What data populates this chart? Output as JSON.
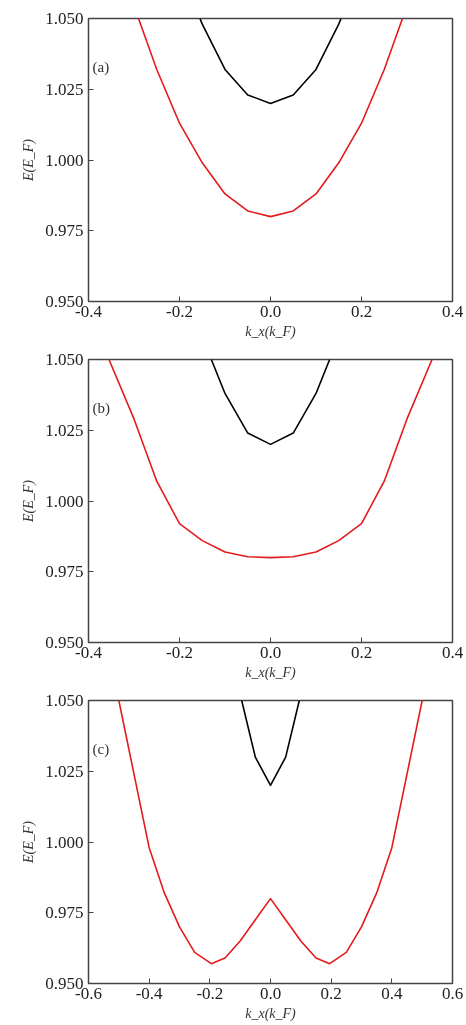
{
  "chart_data": [
    {
      "type": "line",
      "xlabel": "k_x(k_F)",
      "ylabel": "E(E_F)",
      "annotations": [
        "(a)"
      ],
      "grid": false,
      "marker": "none",
      "line_style": "solid",
      "xlim": [
        -0.4,
        0.4
      ],
      "ylim": [
        0.95,
        1.05
      ],
      "xticks": [
        {
          "value": -0.4,
          "label": "-0.4"
        },
        {
          "value": -0.2,
          "label": "-0.2"
        },
        {
          "value": 0,
          "label": "0.0"
        },
        {
          "value": 0.2,
          "label": "0.2"
        },
        {
          "value": 0.4,
          "label": "0.4"
        }
      ],
      "yticks": [
        {
          "value": 0.95,
          "label": "0.950"
        },
        {
          "value": 0.975,
          "label": "0.975"
        },
        {
          "value": 1.0,
          "label": "1.000"
        },
        {
          "value": 1.025,
          "label": "1.025"
        },
        {
          "value": 1.05,
          "label": "1.050"
        }
      ],
      "series": [
        {
          "color": "#000000",
          "x": [
            -0.155,
            -0.15,
            -0.1,
            -0.05,
            0,
            0.05,
            0.1,
            0.15,
            0.155
          ],
          "values": [
            1.05,
            1.048,
            1.032,
            1.023,
            1.02,
            1.023,
            1.032,
            1.048,
            1.05
          ]
        },
        {
          "color": "#e41a1c",
          "x": [
            -0.29,
            -0.25,
            -0.2,
            -0.15,
            -0.1,
            -0.05,
            0,
            0.05,
            0.1,
            0.15,
            0.2,
            0.25,
            0.29
          ],
          "values": [
            1.05,
            1.032,
            1.013,
            0.999,
            0.988,
            0.982,
            0.98,
            0.982,
            0.988,
            0.999,
            1.013,
            1.032,
            1.05
          ]
        }
      ]
    },
    {
      "type": "line",
      "xlabel": "k_x(k_F)",
      "ylabel": "E(E_F)",
      "annotations": [
        "(b)"
      ],
      "grid": false,
      "marker": "none",
      "line_style": "solid",
      "xlim": [
        -0.4,
        0.4
      ],
      "ylim": [
        0.95,
        1.05
      ],
      "xticks": [
        {
          "value": -0.4,
          "label": "-0.4"
        },
        {
          "value": -0.2,
          "label": "-0.2"
        },
        {
          "value": 0,
          "label": "0.0"
        },
        {
          "value": 0.2,
          "label": "0.2"
        },
        {
          "value": 0.4,
          "label": "0.4"
        }
      ],
      "yticks": [
        {
          "value": 0.95,
          "label": "0.950"
        },
        {
          "value": 0.975,
          "label": "0.975"
        },
        {
          "value": 1.0,
          "label": "1.000"
        },
        {
          "value": 1.025,
          "label": "1.025"
        },
        {
          "value": 1.05,
          "label": "1.050"
        }
      ],
      "series": [
        {
          "color": "#000000",
          "x": [
            -0.13,
            -0.1,
            -0.05,
            0,
            0.05,
            0.1,
            0.13
          ],
          "values": [
            1.05,
            1.038,
            1.024,
            1.02,
            1.024,
            1.038,
            1.05
          ]
        },
        {
          "color": "#e41a1c",
          "x": [
            -0.355,
            -0.3,
            -0.25,
            -0.2,
            -0.15,
            -0.1,
            -0.05,
            0,
            0.05,
            0.1,
            0.15,
            0.2,
            0.25,
            0.3,
            0.355
          ],
          "values": [
            1.05,
            1.029,
            1.007,
            0.992,
            0.986,
            0.982,
            0.9803,
            0.98,
            0.9803,
            0.982,
            0.986,
            0.992,
            1.007,
            1.029,
            1.05
          ]
        }
      ]
    },
    {
      "type": "line",
      "xlabel": "k_x(k_F)",
      "ylabel": "E(E_F)",
      "annotations": [
        "(c)"
      ],
      "grid": false,
      "marker": "none",
      "line_style": "solid",
      "xlim": [
        -0.6,
        0.6
      ],
      "ylim": [
        0.95,
        1.05
      ],
      "xticks": [
        {
          "value": -0.6,
          "label": "-0.6"
        },
        {
          "value": -0.4,
          "label": "-0.4"
        },
        {
          "value": -0.2,
          "label": "-0.2"
        },
        {
          "value": 0,
          "label": "0.0"
        },
        {
          "value": 0.2,
          "label": "0.2"
        },
        {
          "value": 0.4,
          "label": "0.4"
        },
        {
          "value": 0.6,
          "label": "0.6"
        }
      ],
      "yticks": [
        {
          "value": 0.95,
          "label": "0.950"
        },
        {
          "value": 0.975,
          "label": "0.975"
        },
        {
          "value": 1.0,
          "label": "1.000"
        },
        {
          "value": 1.025,
          "label": "1.025"
        },
        {
          "value": 1.05,
          "label": "1.050"
        }
      ],
      "series": [
        {
          "color": "#000000",
          "x": [
            -0.095,
            -0.05,
            0,
            0.05,
            0.095
          ],
          "values": [
            1.05,
            1.03,
            1.02,
            1.03,
            1.05
          ]
        },
        {
          "color": "#e41a1c",
          "x": [
            -0.5,
            -0.45,
            -0.4,
            -0.35,
            -0.3,
            -0.25,
            -0.195,
            -0.15,
            -0.1,
            -0.05,
            0,
            0.05,
            0.1,
            0.15,
            0.195,
            0.25,
            0.3,
            0.35,
            0.4,
            0.45,
            0.5
          ],
          "values": [
            1.05,
            1.024,
            0.998,
            0.982,
            0.97,
            0.961,
            0.957,
            0.959,
            0.965,
            0.9725,
            0.98,
            0.9725,
            0.965,
            0.959,
            0.957,
            0.961,
            0.97,
            0.982,
            0.998,
            1.024,
            1.05
          ]
        }
      ]
    }
  ]
}
